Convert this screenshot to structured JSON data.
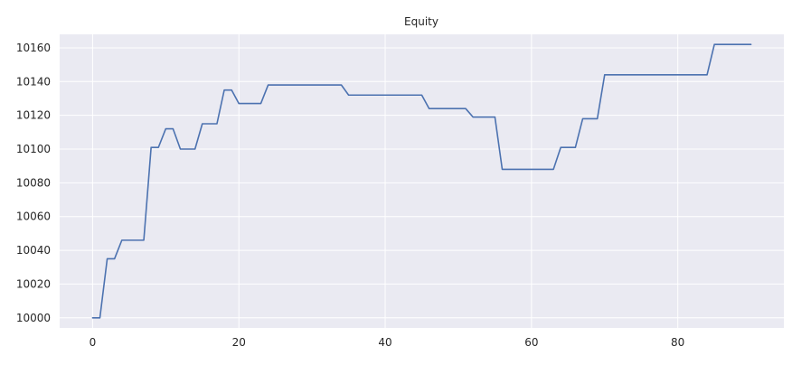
{
  "chart_data": {
    "type": "line",
    "title": "Equity",
    "xlabel": "",
    "ylabel": "",
    "xlim": [
      -4.5,
      94.5
    ],
    "ylim": [
      9994,
      10168
    ],
    "x_ticks": [
      0,
      20,
      40,
      60,
      80
    ],
    "y_ticks": [
      10000,
      10020,
      10040,
      10060,
      10080,
      10100,
      10120,
      10140,
      10160
    ],
    "grid": true,
    "legend": "none",
    "colors": {
      "background": "#eaeaf2",
      "grid": "#ffffff",
      "line": "#4c72b0"
    },
    "series": [
      {
        "x": [
          0,
          1,
          2,
          3,
          4,
          5,
          6,
          7,
          8,
          9,
          10,
          11,
          12,
          13,
          14,
          15,
          16,
          17,
          18,
          19,
          20,
          21,
          22,
          23,
          24,
          25,
          26,
          27,
          28,
          29,
          30,
          31,
          32,
          33,
          34,
          35,
          36,
          37,
          38,
          39,
          40,
          41,
          42,
          43,
          44,
          45,
          46,
          47,
          48,
          49,
          50,
          51,
          52,
          53,
          54,
          55,
          56,
          57,
          58,
          59,
          60,
          61,
          62,
          63,
          64,
          65,
          66,
          67,
          68,
          69,
          70,
          71,
          72,
          73,
          74,
          75,
          76,
          77,
          78,
          79,
          80,
          81,
          82,
          83,
          84,
          85,
          86,
          87,
          88,
          89,
          90
        ],
        "values": [
          10000,
          10000,
          10035,
          10035,
          10046,
          10046,
          10046,
          10046,
          10101,
          10101,
          10112,
          10112,
          10100,
          10100,
          10100,
          10115,
          10115,
          10115,
          10135,
          10135,
          10127,
          10127,
          10127,
          10127,
          10138,
          10138,
          10138,
          10138,
          10138,
          10138,
          10138,
          10138,
          10138,
          10138,
          10138,
          10132,
          10132,
          10132,
          10132,
          10132,
          10132,
          10132,
          10132,
          10132,
          10132,
          10132,
          10124,
          10124,
          10124,
          10124,
          10124,
          10124,
          10119,
          10119,
          10119,
          10119,
          10088,
          10088,
          10088,
          10088,
          10088,
          10088,
          10088,
          10088,
          10101,
          10101,
          10101,
          10118,
          10118,
          10118,
          10144,
          10144,
          10144,
          10144,
          10144,
          10144,
          10144,
          10144,
          10144,
          10144,
          10144,
          10144,
          10144,
          10144,
          10144,
          10162,
          10162,
          10162,
          10162,
          10162,
          10162
        ]
      }
    ]
  }
}
